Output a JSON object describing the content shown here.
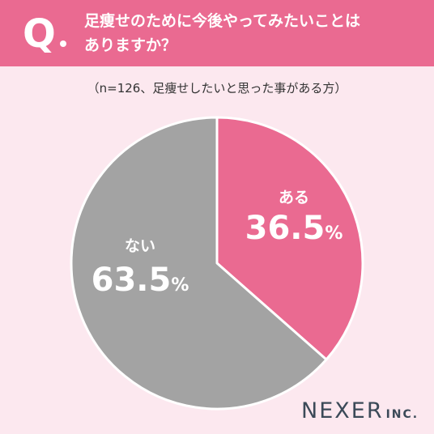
{
  "header": {
    "q_letter": "Q",
    "question": "足痩せのために今後やってみたいことは\nありますか？"
  },
  "note": "（n=126、足痩せしたいと思った事がある方）",
  "chart_data": {
    "type": "pie",
    "slices": [
      {
        "label": "ある",
        "value": 36.5,
        "color": "#ea6a91"
      },
      {
        "label": "ない",
        "value": 63.5,
        "color": "#a3a3a3"
      }
    ],
    "unit": "%"
  },
  "logo": {
    "main": "NEXER",
    "sub": "INC."
  },
  "colors": {
    "accent": "#ea6a91",
    "gray": "#a3a3a3",
    "background": "#fce8ef"
  }
}
